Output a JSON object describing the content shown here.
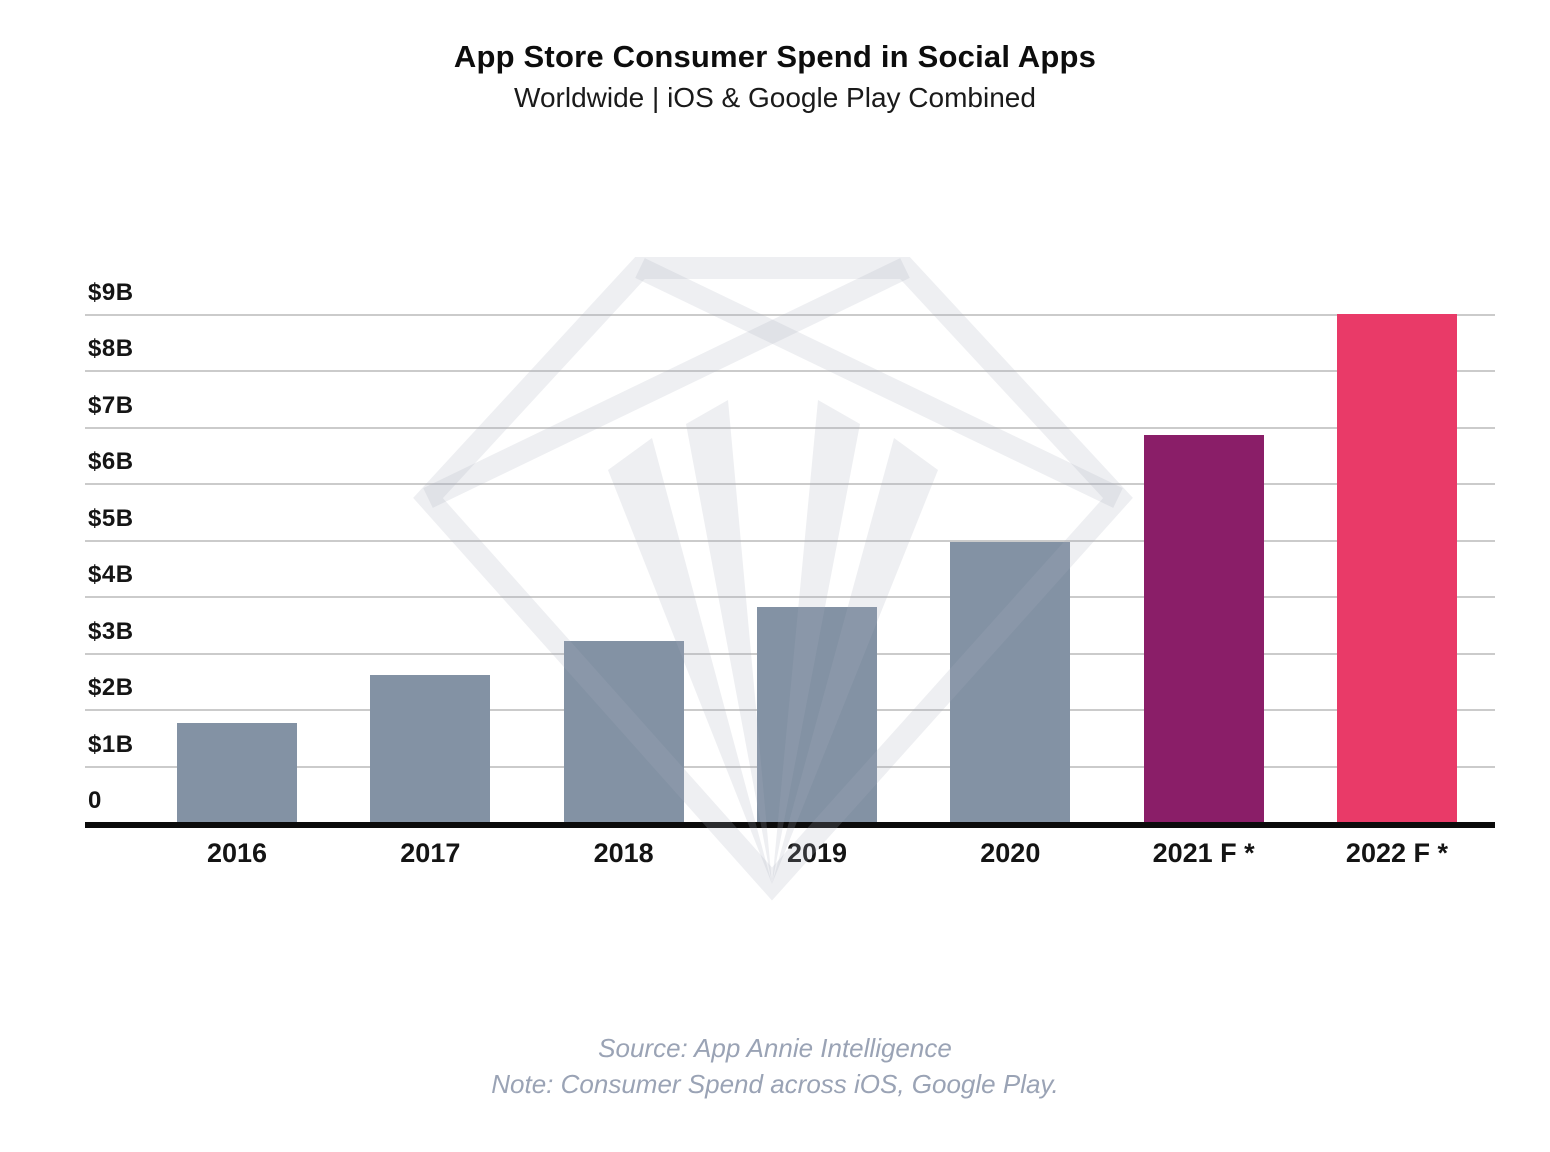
{
  "header": {
    "title": "App Store Consumer Spend in Social Apps",
    "subtitle": "Worldwide | iOS & Google Play Combined"
  },
  "chart_data": {
    "type": "bar",
    "title": "App Store Consumer Spend in Social Apps",
    "subtitle": "Worldwide | iOS & Google Play Combined",
    "categories": [
      "2016",
      "2017",
      "2018",
      "2019",
      "2020",
      "2021 F *",
      "2022 F *"
    ],
    "values": [
      1.75,
      2.6,
      3.2,
      3.8,
      4.95,
      6.85,
      9.0
    ],
    "unit": "USD billions",
    "bar_colors": [
      "#8392A4",
      "#8392A4",
      "#8392A4",
      "#8392A4",
      "#8392A4",
      "#8A1E68",
      "#E93A68"
    ],
    "series_notes": {
      "historical_color": "#8392A4",
      "forecast_2021_color": "#8A1E68",
      "forecast_2022_color": "#E93A68"
    },
    "y_ticks": [
      {
        "value": 9,
        "label": "$9B"
      },
      {
        "value": 8,
        "label": "$8B"
      },
      {
        "value": 7,
        "label": "$7B"
      },
      {
        "value": 6,
        "label": "$6B"
      },
      {
        "value": 5,
        "label": "$5B"
      },
      {
        "value": 4,
        "label": "$4B"
      },
      {
        "value": 3,
        "label": "$3B"
      },
      {
        "value": 2,
        "label": "$2B"
      },
      {
        "value": 1,
        "label": "$1B"
      },
      {
        "value": 0,
        "label": "0"
      }
    ],
    "ylim": [
      0,
      9.8
    ],
    "xlabel": "",
    "ylabel": "",
    "grid": true,
    "legend": false,
    "gridline_color": "#cbcbcb",
    "axis_line_color": "#0b0b0b"
  },
  "watermark": {
    "icon": "app-annie-diamond-logo",
    "color": "rgba(170,177,192,0.20)"
  },
  "footer": {
    "source_line": "Source: App Annie Intelligence",
    "note_line": "Note: Consumer Spend across iOS, Google Play."
  }
}
